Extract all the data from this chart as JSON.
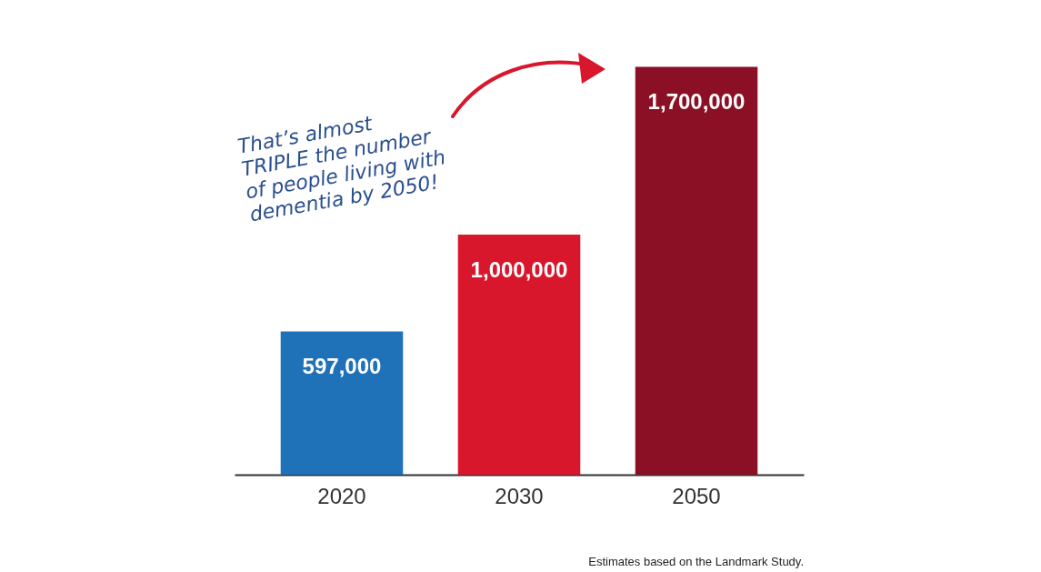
{
  "chart_data": {
    "type": "bar",
    "categories": [
      "2020",
      "2030",
      "2050"
    ],
    "values": [
      597000,
      1000000,
      1700000
    ],
    "colors": [
      "#1f72b8",
      "#d8172c",
      "#8c1025"
    ],
    "value_labels": [
      "597,000",
      "1,000,000",
      "1,700,000"
    ],
    "annotations": [
      "That’s almost\nTRIPLE the number\nof people living with\ndementia by 2050!",
      "Estimates based on the Landmark Study."
    ]
  }
}
